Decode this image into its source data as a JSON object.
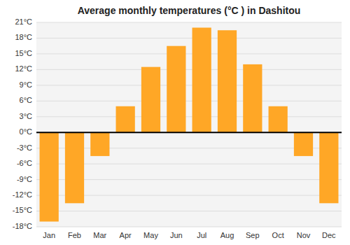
{
  "chart_data": {
    "type": "bar",
    "title": "Average monthly temperatures (°C ) in Dashitou",
    "categories": [
      "Jan",
      "Feb",
      "Mar",
      "Apr",
      "May",
      "Jun",
      "Jul",
      "Aug",
      "Sep",
      "Oct",
      "Nov",
      "Dec"
    ],
    "values": [
      -17.0,
      -13.5,
      -4.5,
      5.0,
      12.5,
      16.5,
      20.0,
      19.5,
      13.0,
      5.0,
      -4.5,
      -13.5
    ],
    "color": "#FFA726",
    "ylim": [
      -18,
      21
    ],
    "yticks": [
      {
        "value": -18,
        "label": "-18°C"
      },
      {
        "value": -15,
        "label": "-15°C"
      },
      {
        "value": -12,
        "label": "-12°C"
      },
      {
        "value": -9,
        "label": "-9°C"
      },
      {
        "value": -6,
        "label": "-6°C"
      },
      {
        "value": -3,
        "label": "-3°C"
      },
      {
        "value": 0,
        "label": "0°C"
      },
      {
        "value": 3,
        "label": "3°C"
      },
      {
        "value": 6,
        "label": "6°C"
      },
      {
        "value": 9,
        "label": "9°C"
      },
      {
        "value": 12,
        "label": "12°C"
      },
      {
        "value": 15,
        "label": "15°C"
      },
      {
        "value": 18,
        "label": "18°C"
      },
      {
        "value": 21,
        "label": "21°C"
      }
    ],
    "grid": true
  }
}
